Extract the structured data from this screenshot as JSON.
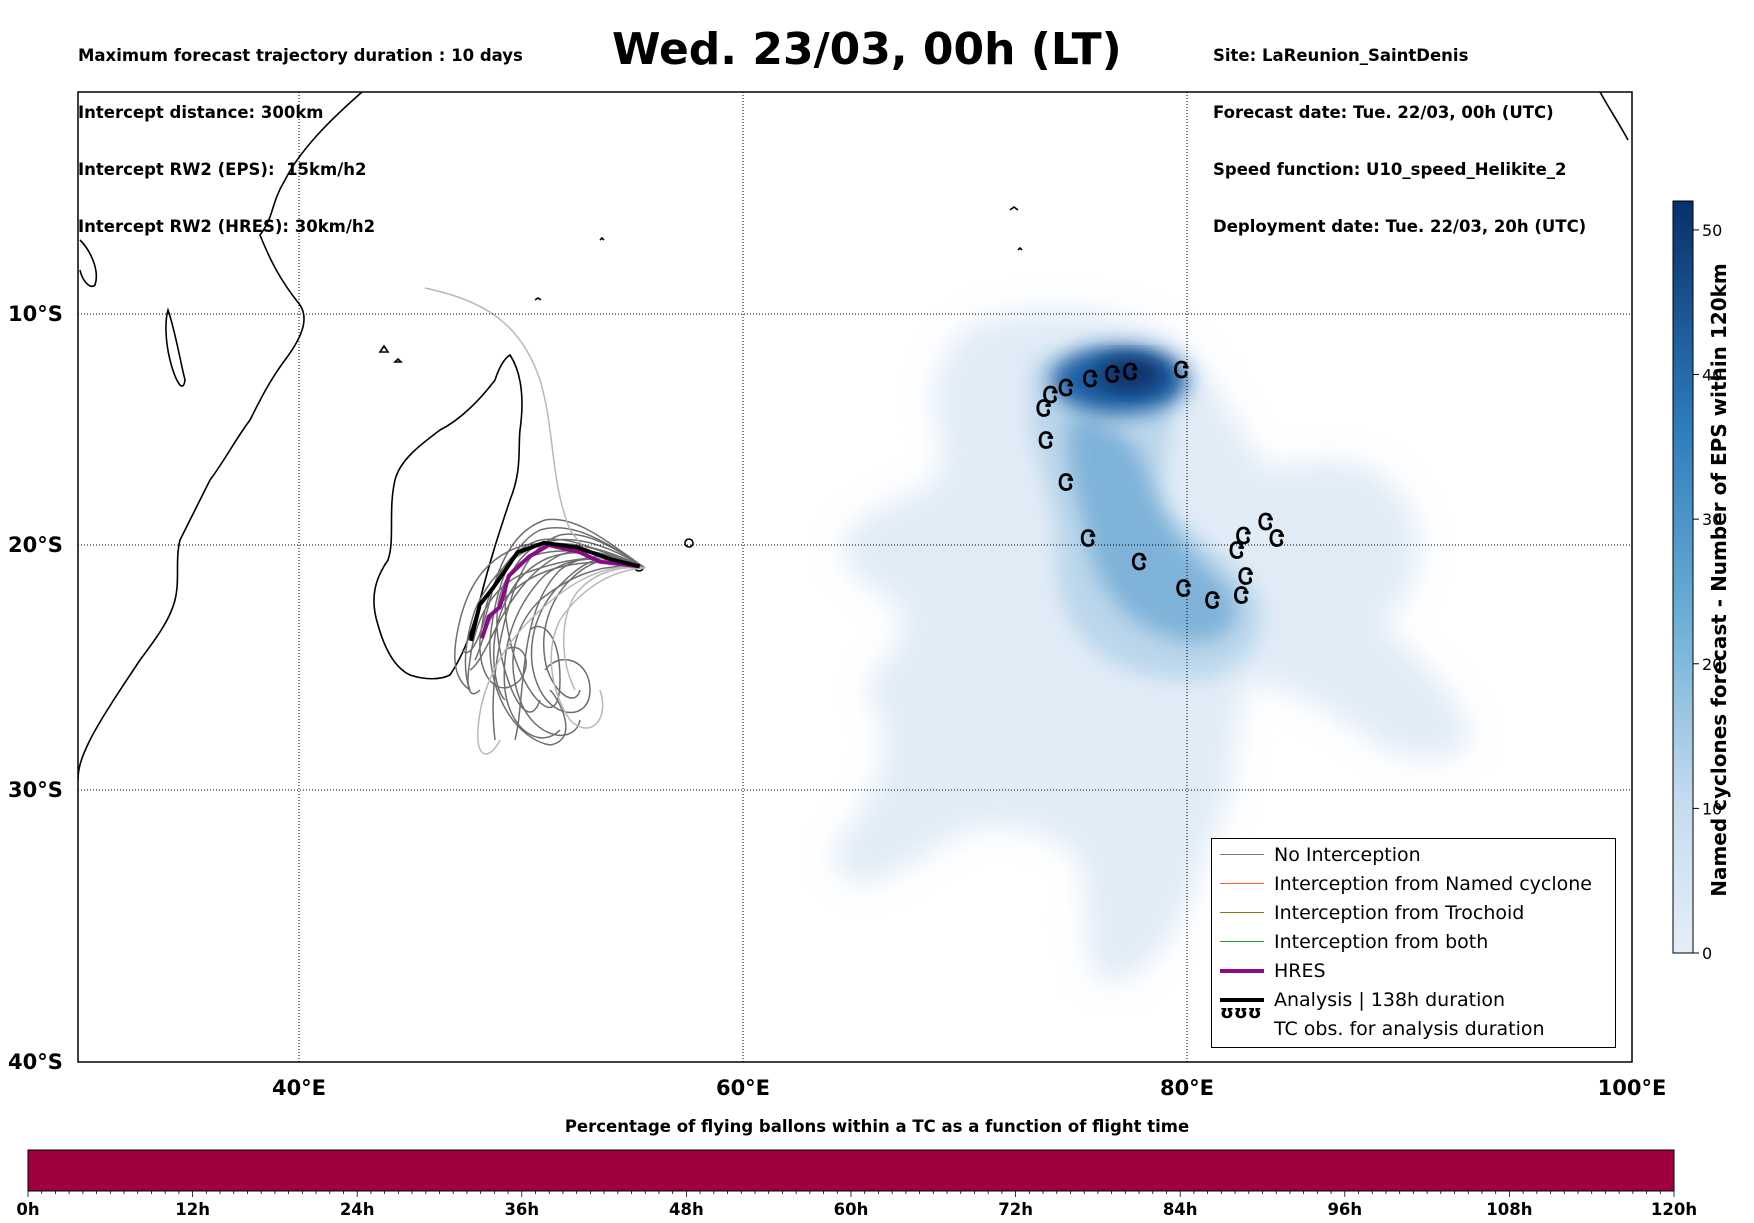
{
  "header": {
    "left": [
      "Maximum forecast trajectory duration : 10 days",
      "Intercept distance: 300km",
      "Intercept RW2 (EPS):  15km/h2",
      "Intercept RW2 (HRES): 30km/h2"
    ],
    "right": [
      "Site: LaReunion_SaintDenis",
      "Forecast date: Tue. 22/03, 00h (UTC)",
      "Speed function: U10_speed_Helikite_2",
      "Deployment date: Tue. 22/03, 20h (UTC)"
    ],
    "title": "Wed. 23/03, 00h (LT)"
  },
  "map": {
    "lat_labels": [
      "10°S",
      "20°S",
      "30°S",
      "40°S"
    ],
    "lon_labels": [
      "40°E",
      "60°E",
      "80°E",
      "100°E"
    ],
    "lon_range": [
      30,
      100
    ],
    "lat_range": [
      -40,
      0
    ]
  },
  "legend": {
    "items": [
      {
        "label": "No Interception",
        "color": "#7a7a7a",
        "type": "thin"
      },
      {
        "label": "Interception from Named cyclone",
        "color": "#ff5a1e",
        "type": "thin"
      },
      {
        "label": "Interception from Trochoid",
        "color": "#8a7a12",
        "type": "thin"
      },
      {
        "label": "Interception from both",
        "color": "#1aa01a",
        "type": "thin"
      },
      {
        "label": "HRES",
        "color": "#8b0a8b",
        "type": "thick"
      },
      {
        "label": "Analysis | 138h duration",
        "color": "#000000",
        "type": "thick"
      },
      {
        "label": "TC obs. for analysis duration",
        "color": "#000000",
        "type": "symbol",
        "symbol": "ʊʊʊ"
      }
    ]
  },
  "right_colorbar": {
    "label": "Named cyclones forecast - Number of EPS within 120km",
    "ticks": [
      "0",
      "10",
      "20",
      "30",
      "40",
      "50"
    ],
    "min": 0,
    "max": 52,
    "color_low": "#e4eef8",
    "color_high": "#08306b"
  },
  "bottom_colorbar": {
    "title": "Percentage of flying ballons within a TC as a function of flight time",
    "ticks": [
      "0h",
      "12h",
      "24h",
      "36h",
      "48h",
      "60h",
      "72h",
      "84h",
      "96h",
      "108h",
      "120h"
    ],
    "color": "#9e0040"
  },
  "tc_obs": {
    "symbol": "Ꮳ",
    "points": [
      [
        79.7,
        -12.4
      ],
      [
        77.4,
        -12.5
      ],
      [
        76.6,
        -12.6
      ],
      [
        75.6,
        -12.8
      ],
      [
        74.5,
        -13.2
      ],
      [
        73.8,
        -13.5
      ],
      [
        73.5,
        -14.1
      ],
      [
        73.6,
        -15.5
      ],
      [
        74.5,
        -17.3
      ],
      [
        75.5,
        -19.7
      ],
      [
        77.8,
        -20.7
      ],
      [
        79.8,
        -21.8
      ],
      [
        81.1,
        -22.3
      ],
      [
        82.4,
        -22.1
      ],
      [
        82.6,
        -21.3
      ],
      [
        82.2,
        -20.2
      ],
      [
        82.5,
        -19.6
      ],
      [
        83.5,
        -19.0
      ],
      [
        84.0,
        -19.7
      ]
    ]
  },
  "analysis_track": [
    [
      47.7,
      -24.0
    ],
    [
      48.1,
      -22.5
    ],
    [
      48.7,
      -21.8
    ],
    [
      49.0,
      -21.4
    ],
    [
      49.8,
      -20.3
    ],
    [
      51.0,
      -19.9
    ],
    [
      52.5,
      -20.1
    ],
    [
      54.0,
      -20.6
    ],
    [
      55.3,
      -20.9
    ]
  ],
  "hres_track": [
    [
      48.2,
      -23.9
    ],
    [
      48.5,
      -23.0
    ],
    [
      49.0,
      -22.6
    ],
    [
      49.4,
      -21.3
    ],
    [
      50.3,
      -20.5
    ],
    [
      51.2,
      -20.0
    ],
    [
      52.6,
      -20.3
    ],
    [
      53.5,
      -20.7
    ],
    [
      55.3,
      -20.9
    ]
  ]
}
